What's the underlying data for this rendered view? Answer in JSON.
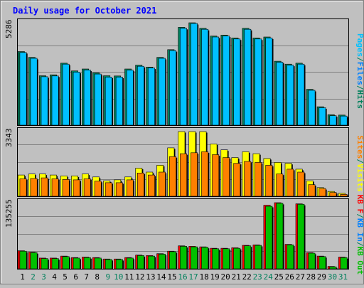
{
  "colors": {
    "background": "#c0c0c0",
    "title": "#0000ff",
    "pages": "#00c0ff",
    "files": "#0080ff",
    "hits": "#00805c",
    "sites": "#ff8000",
    "visits": "#ffff00",
    "kbytes": "#ff0000",
    "kb_in": "#0080ff",
    "kb_out": "#00c000",
    "weekend_day": "#00805c",
    "weekday": "#000000"
  },
  "chart_data": [
    {
      "type": "bar",
      "title": "Daily usage for October 2021",
      "panel": "hits-files-pages",
      "ylabel_max": "5286",
      "ylim": [
        0,
        5286
      ],
      "categories": [
        "1",
        "2",
        "3",
        "4",
        "5",
        "6",
        "7",
        "8",
        "9",
        "10",
        "11",
        "12",
        "13",
        "14",
        "15",
        "16",
        "17",
        "18",
        "19",
        "20",
        "21",
        "22",
        "23",
        "24",
        "25",
        "26",
        "27",
        "28",
        "29",
        "30",
        "31"
      ],
      "weekend_days": [
        "2",
        "3",
        "9",
        "10",
        "16",
        "17",
        "23",
        "24",
        "30",
        "31"
      ],
      "legend": [
        {
          "text": "Pages",
          "color_key": "pages"
        },
        {
          "text": "/",
          "color_key": "hits"
        },
        {
          "text": "Files",
          "color_key": "files"
        },
        {
          "text": "/",
          "color_key": "hits"
        },
        {
          "text": "Hits",
          "color_key": "hits"
        }
      ],
      "series": [
        {
          "name": "Hits",
          "color_key": "hits",
          "values": [
            3800,
            3500,
            2550,
            2600,
            3200,
            2800,
            2900,
            2700,
            2550,
            2540,
            2900,
            3100,
            3000,
            3500,
            3900,
            5050,
            5300,
            5000,
            4600,
            4650,
            4500,
            5000,
            4500,
            4550,
            3300,
            3150,
            3200,
            1850,
            950,
            540,
            520
          ]
        },
        {
          "name": "Pages",
          "color_key": "pages",
          "values": [
            3750,
            3450,
            2500,
            2540,
            3150,
            2740,
            2850,
            2640,
            2480,
            2480,
            2840,
            3040,
            2950,
            3450,
            3850,
            5000,
            5250,
            4950,
            4550,
            4600,
            4450,
            4950,
            4450,
            4500,
            3250,
            3100,
            3150,
            1800,
            900,
            490,
            470
          ]
        }
      ]
    },
    {
      "type": "bar",
      "panel": "sites-visits",
      "ylabel_max": "3343",
      "ylim": [
        0,
        3343
      ],
      "legend": [
        {
          "text": "Sites",
          "color_key": "sites"
        },
        {
          "text": "/",
          "color_key": "hits"
        },
        {
          "text": "Visits",
          "color_key": "visits"
        }
      ],
      "series": [
        {
          "name": "Visits",
          "color_key": "visits",
          "values": [
            1100,
            1150,
            1150,
            1100,
            1050,
            1050,
            1150,
            1000,
            800,
            850,
            1000,
            1450,
            1250,
            1600,
            2500,
            3343,
            3343,
            3343,
            2700,
            2400,
            2000,
            2300,
            2200,
            1950,
            1750,
            1700,
            1400,
            800,
            450,
            250,
            150
          ]
        },
        {
          "name": "Sites",
          "color_key": "sites",
          "values": [
            900,
            920,
            950,
            900,
            870,
            850,
            900,
            780,
            700,
            700,
            850,
            1200,
            1100,
            1250,
            2050,
            2200,
            2250,
            2300,
            2150,
            2000,
            1700,
            1800,
            1750,
            1600,
            1150,
            1400,
            1250,
            600,
            400,
            200,
            100
          ]
        }
      ]
    },
    {
      "type": "bar",
      "panel": "kbytes",
      "ylabel_max": "135255",
      "ylim": [
        0,
        135255
      ],
      "legend": [
        {
          "text": "KB F",
          "color_key": "kbytes"
        },
        {
          "text": "/",
          "color_key": "hits"
        },
        {
          "text": "KB In",
          "color_key": "kb_in"
        },
        {
          "text": "/",
          "color_key": "hits"
        },
        {
          "text": "KB Out",
          "color_key": "kb_out"
        }
      ],
      "series": [
        {
          "name": "KB F",
          "color_key": "kbytes",
          "values": [
            37000,
            34000,
            22000,
            22000,
            26000,
            23000,
            24000,
            23000,
            20000,
            20000,
            23000,
            28000,
            27000,
            31000,
            36000,
            47000,
            46000,
            45000,
            42000,
            42000,
            43000,
            48000,
            49000,
            130000,
            135255,
            50000,
            133000,
            33000,
            26000,
            5000,
            24000
          ]
        },
        {
          "name": "KB Out",
          "color_key": "kb_out",
          "values": [
            36000,
            33000,
            21000,
            21000,
            25000,
            22000,
            23000,
            22000,
            19000,
            19000,
            22000,
            27000,
            26000,
            30000,
            35000,
            46000,
            45000,
            44000,
            41000,
            41000,
            42000,
            47000,
            48000,
            128000,
            134000,
            49000,
            132000,
            32000,
            25000,
            4000,
            23000
          ]
        }
      ]
    }
  ]
}
